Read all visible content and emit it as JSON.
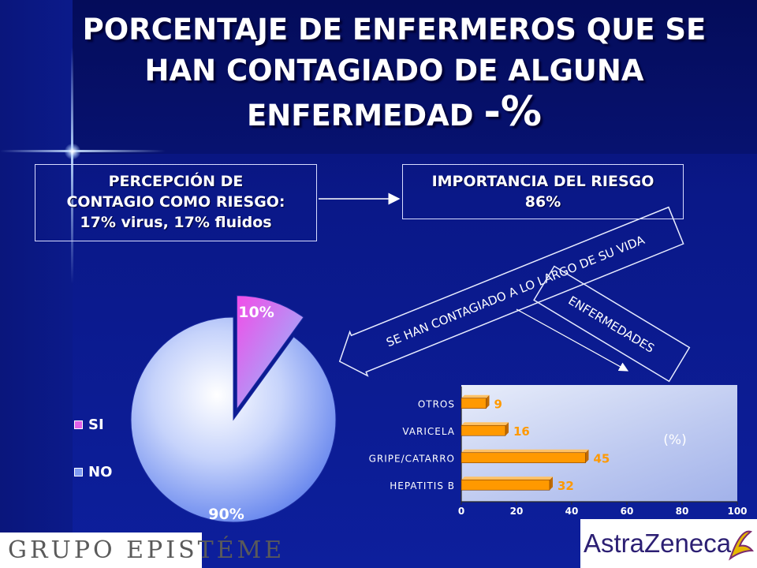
{
  "slide": {
    "title_line1": "PORCENTAJE DE ENFERMEROS QUE SE",
    "title_line2": "HAN CONTAGIADO DE ALGUNA",
    "title_line3": "ENFERMEDAD",
    "title_suffix": "-%"
  },
  "boxes": {
    "perception_line1": "PERCEPCIÓN DE",
    "perception_line2": "CONTAGIO COMO RIESGO:",
    "perception_line3": "17% virus, 17% fluidos",
    "importance_line1": "IMPORTANCIA DEL RIESGO",
    "importance_line2": "86%"
  },
  "arrows": {
    "contagion_label": "SE HAN CONTAGIADO  A LO LARGO DE SU VIDA",
    "diseases_label": "ENFERMEDADES"
  },
  "logos": {
    "left": "GRUPO EPISTÉME",
    "right": "AstraZeneca"
  },
  "colors": {
    "background": "#0b1a8a",
    "pie_si": "#e060e8",
    "pie_no": "#7f9cf2",
    "bar": "#ff9900",
    "text": "#ffffff"
  },
  "chart_data": [
    {
      "type": "pie",
      "title": "",
      "slices": [
        {
          "label": "SI",
          "value": 10,
          "data_label": "10%"
        },
        {
          "label": "NO",
          "value": 90,
          "data_label": "90%"
        }
      ],
      "legend": [
        "SI",
        "NO"
      ],
      "legend_position": "left"
    },
    {
      "type": "bar",
      "orientation": "horizontal",
      "categories": [
        "OTROS",
        "VARICELA",
        "GRIPE/CATARRO",
        "HEPATITIS B"
      ],
      "values": [
        9,
        16,
        45,
        32
      ],
      "unit_label": "(%)",
      "xlim": [
        0,
        100
      ],
      "xticks": [
        "0",
        "20",
        "40",
        "60",
        "80",
        "100"
      ],
      "grid": false
    }
  ]
}
